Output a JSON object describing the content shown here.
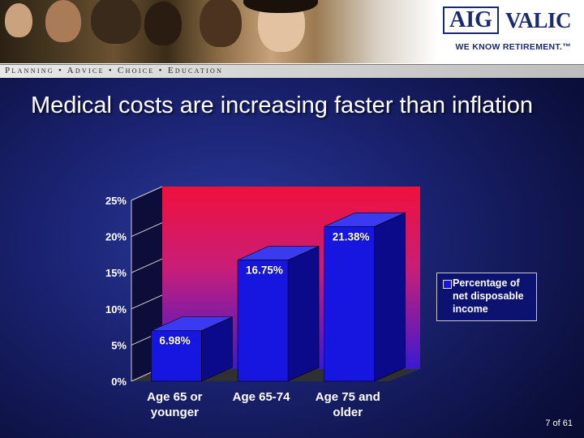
{
  "header": {
    "brand_aig": "AIG",
    "brand_valic": "VALIC",
    "tagline": "WE KNOW RETIREMENT.™",
    "nav_text": "Planning • Advice • Choice • Education"
  },
  "slide": {
    "title": "Medical costs are increasing faster than inflation",
    "footer": "7 of 61"
  },
  "colors": {
    "bar_front": "#1616e0",
    "bar_side": "#0a0a8a",
    "bar_top": "#3a3af0",
    "plot_top": "#f0103c",
    "plot_bottom": "#3a1ad0"
  },
  "chart_data": {
    "type": "bar",
    "categories": [
      "Age 65 or younger",
      "Age 65-74",
      "Age 75 and older"
    ],
    "category_lines": [
      [
        "Age 65 or",
        "younger"
      ],
      [
        "Age 65-74"
      ],
      [
        "Age 75 and",
        "older"
      ]
    ],
    "series": [
      {
        "name": "Percentage of net disposable income",
        "values": [
          6.98,
          16.75,
          21.38
        ],
        "labels": [
          "6.98%",
          "16.75%",
          "21.38%"
        ]
      }
    ],
    "legend_text": "Percentage of net disposable income",
    "legend_position": "right",
    "ylim": [
      0,
      25
    ],
    "yticks": [
      "0%",
      "5%",
      "10%",
      "15%",
      "20%",
      "25%"
    ],
    "ytick_values": [
      0,
      5,
      10,
      15,
      20,
      25
    ],
    "grid": false,
    "three_d": true
  }
}
